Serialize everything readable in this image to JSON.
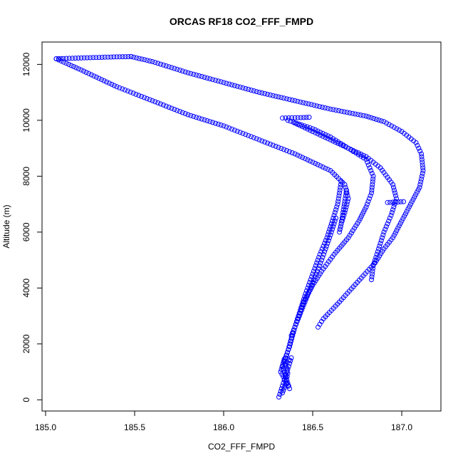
{
  "chart_data": {
    "type": "scatter",
    "title": "ORCAS RF18 CO2_FFF_FMPD",
    "xlabel": "CO2_FFF_FMPD",
    "ylabel": "Altitude (m)",
    "xlim": [
      184.98,
      187.22
    ],
    "ylim": [
      -400,
      12800
    ],
    "xticks": [
      185.0,
      185.5,
      186.0,
      186.5,
      187.0
    ],
    "xtick_labels": [
      "185.0",
      "185.5",
      "186.0",
      "186.5",
      "187.0"
    ],
    "yticks": [
      0,
      2000,
      4000,
      6000,
      8000,
      10000,
      12000
    ],
    "ytick_labels": [
      "0",
      "2000",
      "4000",
      "6000",
      "8000",
      "10000",
      "12000"
    ],
    "grid": false,
    "marker": "open-circle",
    "color": "#0000ff",
    "series": [
      {
        "x": [
          185.06,
          185.1,
          185.2,
          185.3,
          185.4,
          185.48
        ],
        "y": [
          12200,
          12210,
          12230,
          12250,
          12270,
          12280
        ]
      },
      {
        "x": [
          185.48,
          185.6,
          185.8,
          186.0,
          186.2,
          186.4,
          186.6,
          186.8,
          186.9,
          187.0,
          187.08,
          187.11,
          187.12,
          187.1,
          187.05,
          187.0,
          186.95,
          186.9,
          186.85,
          186.75,
          186.65,
          186.56,
          186.53
        ],
        "y": [
          12280,
          12100,
          11700,
          11350,
          11000,
          10700,
          10400,
          10150,
          9950,
          9600,
          9200,
          8800,
          8200,
          7600,
          7000,
          6400,
          5800,
          5400,
          4900,
          4200,
          3500,
          2900,
          2600
        ]
      },
      {
        "x": [
          185.06,
          185.2,
          185.4,
          185.6,
          185.8,
          186.0,
          186.2,
          186.4,
          186.5,
          186.6,
          186.68,
          186.7,
          186.68,
          186.66,
          186.65,
          186.66,
          186.69
        ],
        "y": [
          12200,
          11800,
          11200,
          10700,
          10200,
          9800,
          9300,
          8800,
          8500,
          8200,
          7700,
          7200,
          6700,
          6300,
          6000,
          6300,
          7500
        ]
      },
      {
        "x": [
          186.33,
          186.4,
          186.45,
          186.48
        ],
        "y": [
          10080,
          10090,
          10100,
          10110
        ]
      },
      {
        "x": [
          186.36,
          186.5,
          186.6,
          186.7,
          186.8,
          186.84,
          186.83,
          186.8,
          186.76,
          186.7,
          186.62,
          186.55,
          186.5,
          186.45,
          186.42,
          186.4,
          186.38
        ],
        "y": [
          10000,
          9700,
          9400,
          9000,
          8600,
          8000,
          7400,
          6900,
          6400,
          5800,
          5200,
          4600,
          4100,
          3500,
          3000,
          2600,
          2300
        ]
      },
      {
        "x": [
          186.4,
          186.5,
          186.6,
          186.7,
          186.8,
          186.88,
          186.95,
          186.97,
          186.94,
          186.9,
          186.87,
          186.84,
          186.83
        ],
        "y": [
          9900,
          9600,
          9300,
          9000,
          8700,
          8300,
          7700,
          7200,
          6600,
          6000,
          5400,
          4800,
          4300
        ]
      },
      {
        "x": [
          186.92,
          186.95,
          186.98,
          187.01
        ],
        "y": [
          7060,
          7070,
          7080,
          7090
        ]
      },
      {
        "x": [
          186.35,
          186.38,
          186.42,
          186.46,
          186.5,
          186.54,
          186.58,
          186.61,
          186.64,
          186.66
        ],
        "y": [
          1500,
          2200,
          3000,
          3800,
          4500,
          5200,
          5800,
          6400,
          7000,
          7800
        ]
      },
      {
        "x": [
          186.34,
          186.37,
          186.4,
          186.45,
          186.5,
          186.55,
          186.6,
          186.63
        ],
        "y": [
          1400,
          1900,
          2600,
          3400,
          4200,
          5000,
          5900,
          6500
        ]
      },
      {
        "x": [
          186.31,
          186.32,
          186.33,
          186.34,
          186.35,
          186.36,
          186.37,
          186.38,
          186.33,
          186.35,
          186.37,
          186.32,
          186.34,
          186.36,
          186.35,
          186.33
        ],
        "y": [
          100,
          300,
          500,
          700,
          900,
          1100,
          1300,
          1500,
          1200,
          800,
          400,
          1000,
          1450,
          950,
          600,
          250
        ]
      }
    ]
  }
}
